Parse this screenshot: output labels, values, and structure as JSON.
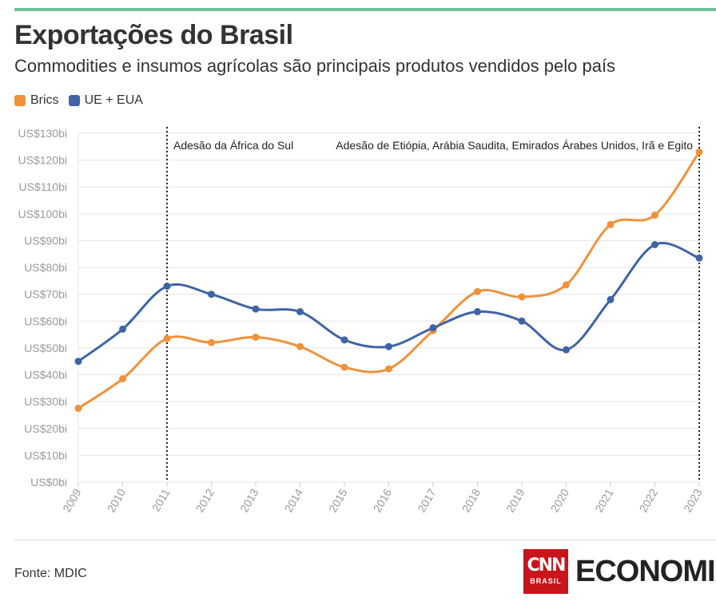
{
  "header": {
    "title": "Exportações do Brasil",
    "subtitle": "Commodities e insumos agrícolas são principais produtos vendidos pelo país",
    "accent_color": "#6dbf9c"
  },
  "footer": {
    "source": "Fonte: MDIC",
    "logo_top": "CNN",
    "logo_bottom": "BRASIL",
    "logo_text": "ECONOMIA",
    "logo_color": "#c8141b"
  },
  "chart_data": {
    "type": "line",
    "x": [
      "2009",
      "2010",
      "2011",
      "2012",
      "2013",
      "2014",
      "2015",
      "2016",
      "2017",
      "2018",
      "2019",
      "2020",
      "2021",
      "2022",
      "2023"
    ],
    "series": [
      {
        "name": "Brics",
        "color": "#f0923b",
        "values": [
          27.5,
          38.5,
          53.5,
          52,
          54,
          50.5,
          42.8,
          42.2,
          56.5,
          71,
          69,
          73.5,
          96,
          99.5,
          123
        ]
      },
      {
        "name": "UE + EUA",
        "color": "#3f64a6",
        "values": [
          45,
          57,
          73,
          70,
          64.5,
          63.5,
          53,
          50.5,
          57.5,
          63.5,
          60,
          49.3,
          68,
          88.5,
          83.5
        ]
      }
    ],
    "yticks": [
      "US$0bi",
      "US$10bi",
      "US$20bi",
      "US$30bi",
      "US$40bi",
      "US$50bi",
      "US$60bi",
      "US$70bi",
      "US$80bi",
      "US$90bi",
      "US$100bi",
      "US$110bi",
      "US$120bi",
      "US$130bi"
    ],
    "ylim": [
      0,
      130
    ],
    "annotations": [
      {
        "x": "2011",
        "text": "Adesão da África do Sul",
        "anchor": "start"
      },
      {
        "x": "2023",
        "text": "Adesão de Etiópia, Arábia Saudita, Emirados Árabes Unidos, Irã e Egito",
        "anchor": "end"
      }
    ],
    "grid": true,
    "legend": "top-left"
  }
}
